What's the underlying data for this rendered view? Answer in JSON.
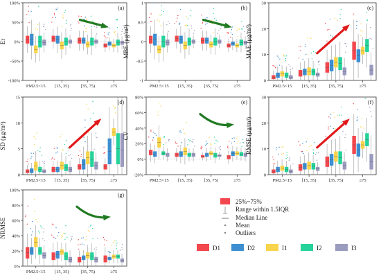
{
  "categories": [
    "PM2.5<15",
    "[15, 35)",
    "[35, 75)",
    "≥75"
  ],
  "series": [
    {
      "name": "D1",
      "color": "#f2474d"
    },
    {
      "name": "D2",
      "color": "#3d8fd1"
    },
    {
      "name": "I1",
      "color": "#f7d44c"
    },
    {
      "name": "I2",
      "color": "#25d39a"
    },
    {
      "name": "I3",
      "color": "#9b9bbf"
    }
  ],
  "arrow_colors": {
    "down": "#217a21",
    "up": "#e0191b",
    "flat": "#217a21"
  },
  "legend_labels": {
    "box": "25%~75%",
    "whisker": "Range within 1.5IQR",
    "median": "Median Line",
    "mean": "Mean",
    "outlier": "Outliers"
  },
  "chart_data": [
    {
      "type": "box",
      "panel": "(a)",
      "ylabel": "Er",
      "ylim": [
        -100,
        100
      ],
      "yticks": [
        -100,
        -50,
        0,
        50,
        100
      ],
      "tick_suffix": "%",
      "trend": "down",
      "boxes": [
        [
          [
            -5,
            15
          ],
          [
            -10,
            20
          ],
          [
            -30,
            -10
          ],
          [
            -15,
            15
          ],
          [
            -10,
            5
          ]
        ],
        [
          [
            0,
            15
          ],
          [
            -5,
            15
          ],
          [
            -20,
            0
          ],
          [
            -10,
            10
          ],
          [
            -5,
            5
          ]
        ],
        [
          [
            -5,
            10
          ],
          [
            -5,
            10
          ],
          [
            -15,
            0
          ],
          [
            -10,
            10
          ],
          [
            -5,
            5
          ]
        ],
        [
          [
            -15,
            -5
          ],
          [
            -10,
            0
          ],
          [
            -15,
            -5
          ],
          [
            -10,
            5
          ],
          [
            -8,
            2
          ]
        ]
      ]
    },
    {
      "type": "box",
      "panel": "(b)",
      "ylabel": "MBE (μg/m³)",
      "ylim": [
        -1.0,
        1.0
      ],
      "yticks": [
        -1.0,
        -0.5,
        0.0,
        0.5,
        1.0
      ],
      "tick_suffix": "",
      "trend": "down",
      "boxes": [
        [
          [
            -0.05,
            0.15
          ],
          [
            -0.1,
            0.2
          ],
          [
            -0.3,
            -0.1
          ],
          [
            -0.15,
            0.15
          ],
          [
            -0.1,
            0.05
          ]
        ],
        [
          [
            0,
            0.15
          ],
          [
            -0.05,
            0.15
          ],
          [
            -0.2,
            0
          ],
          [
            -0.1,
            0.1
          ],
          [
            -0.05,
            0.05
          ]
        ],
        [
          [
            -0.05,
            0.1
          ],
          [
            -0.05,
            0.1
          ],
          [
            -0.15,
            0
          ],
          [
            -0.1,
            0.1
          ],
          [
            -0.05,
            0.05
          ]
        ],
        [
          [
            -0.15,
            -0.05
          ],
          [
            -0.1,
            0
          ],
          [
            -0.15,
            -0.05
          ],
          [
            -0.1,
            0.05
          ],
          [
            -0.08,
            0.02
          ]
        ]
      ]
    },
    {
      "type": "box",
      "panel": "(c)",
      "ylabel": "MAE (μg/m³)",
      "ylim": [
        0,
        30
      ],
      "yticks": [
        0,
        10,
        20,
        30
      ],
      "tick_suffix": "",
      "trend": "up",
      "boxes": [
        [
          [
            0.5,
            2
          ],
          [
            1,
            3
          ],
          [
            1.5,
            3.5
          ],
          [
            1,
            3
          ],
          [
            0.5,
            2
          ]
        ],
        [
          [
            1.5,
            4
          ],
          [
            2,
            4.5
          ],
          [
            2,
            5
          ],
          [
            2,
            4.5
          ],
          [
            1.5,
            3
          ]
        ],
        [
          [
            3,
            7
          ],
          [
            3.5,
            8
          ],
          [
            5,
            9
          ],
          [
            4,
            9
          ],
          [
            2,
            5
          ]
        ],
        [
          [
            8,
            15
          ],
          [
            7,
            12
          ],
          [
            10,
            13
          ],
          [
            11,
            16
          ],
          [
            2,
            6
          ]
        ]
      ]
    },
    {
      "type": "box",
      "panel": "(d)",
      "ylabel": "SD (μg/m³)",
      "ylim": [
        0,
        15
      ],
      "yticks": [
        0,
        5,
        10,
        15
      ],
      "tick_suffix": "",
      "trend": "up",
      "boxes": [
        [
          [
            0.3,
            1
          ],
          [
            0.3,
            1.2
          ],
          [
            0.8,
            2.5
          ],
          [
            0.5,
            1.5
          ],
          [
            0.3,
            1
          ]
        ],
        [
          [
            0.5,
            1.5
          ],
          [
            0.5,
            1.5
          ],
          [
            1,
            2.5
          ],
          [
            0.7,
            2
          ],
          [
            0.5,
            1.5
          ]
        ],
        [
          [
            1,
            2
          ],
          [
            1,
            3
          ],
          [
            2,
            4.5
          ],
          [
            1.5,
            4.5
          ],
          [
            1,
            2.5
          ]
        ],
        [
          [
            1,
            2
          ],
          [
            2,
            7
          ],
          [
            7.5,
            9
          ],
          [
            2,
            8
          ],
          [
            1.5,
            8
          ]
        ]
      ]
    },
    {
      "type": "box",
      "panel": "(e)",
      "ylabel": "CV",
      "ylim": [
        -20,
        80
      ],
      "yticks": [
        -20,
        0,
        20,
        40,
        60,
        80
      ],
      "tick_suffix": "%",
      "trend": "flat",
      "boxes": [
        [
          [
            5,
            12
          ],
          [
            3,
            10
          ],
          [
            15,
            28
          ],
          [
            5,
            10
          ],
          [
            3,
            8
          ]
        ],
        [
          [
            3,
            8
          ],
          [
            3,
            10
          ],
          [
            5,
            15
          ],
          [
            3,
            8
          ],
          [
            3,
            8
          ]
        ],
        [
          [
            2,
            5
          ],
          [
            3,
            8
          ],
          [
            5,
            10
          ],
          [
            2,
            8
          ],
          [
            3,
            6
          ]
        ],
        [
          [
            0,
            5
          ],
          [
            4,
            10
          ],
          [
            5,
            10
          ],
          [
            4,
            9
          ],
          [
            3,
            8
          ]
        ]
      ]
    },
    {
      "type": "box",
      "panel": "(f)",
      "ylabel": "RMSE (μg/m³)",
      "ylim": [
        0,
        30
      ],
      "yticks": [
        0,
        10,
        20,
        30
      ],
      "tick_suffix": "",
      "trend": "up",
      "boxes": [
        [
          [
            0.5,
            2
          ],
          [
            1,
            3
          ],
          [
            1.5,
            3.5
          ],
          [
            1,
            3
          ],
          [
            0.5,
            2
          ]
        ],
        [
          [
            1.5,
            4
          ],
          [
            2,
            4.5
          ],
          [
            2,
            5
          ],
          [
            2,
            4.5
          ],
          [
            1.5,
            3
          ]
        ],
        [
          [
            3,
            7
          ],
          [
            3.5,
            8
          ],
          [
            5,
            9
          ],
          [
            4,
            9
          ],
          [
            2,
            5
          ]
        ],
        [
          [
            8,
            15
          ],
          [
            7,
            12
          ],
          [
            10,
            13
          ],
          [
            11,
            16
          ],
          [
            2,
            8
          ]
        ]
      ]
    },
    {
      "type": "box",
      "panel": "(g)",
      "ylabel": "NRMSE",
      "ylim": [
        0,
        100
      ],
      "yticks": [
        0,
        20,
        40,
        60,
        80,
        100
      ],
      "tick_suffix": "%",
      "trend": "flat",
      "boxes": [
        [
          [
            10,
            25
          ],
          [
            15,
            25
          ],
          [
            25,
            38
          ],
          [
            15,
            25
          ],
          [
            10,
            18
          ]
        ],
        [
          [
            8,
            18
          ],
          [
            10,
            20
          ],
          [
            15,
            22
          ],
          [
            8,
            18
          ],
          [
            5,
            12
          ]
        ],
        [
          [
            5,
            12
          ],
          [
            8,
            14
          ],
          [
            10,
            18
          ],
          [
            8,
            18
          ],
          [
            5,
            12
          ]
        ],
        [
          [
            5,
            14
          ],
          [
            8,
            12
          ],
          [
            10,
            15
          ],
          [
            10,
            15
          ],
          [
            5,
            10
          ]
        ]
      ]
    }
  ]
}
